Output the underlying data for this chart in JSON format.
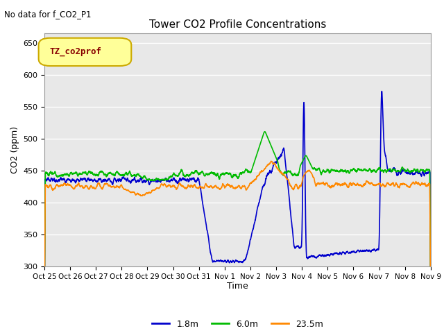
{
  "title": "Tower CO2 Profile Concentrations",
  "no_data_label": "No data for f_CO2_P1",
  "ylabel": "CO2 (ppm)",
  "xlabel": "Time",
  "ylim": [
    300,
    665
  ],
  "yticks": [
    300,
    350,
    400,
    450,
    500,
    550,
    600,
    650
  ],
  "background_color": "#e8e8e8",
  "plot_bg_color": "#e8e8e8",
  "fig_bg_color": "#ffffff",
  "grid_color": "#ffffff",
  "legend_label": "TZ_co2prof",
  "legend_bg": "#ffff99",
  "legend_border": "#ccaa00",
  "lines": {
    "1.8m": {
      "color": "#0000cc",
      "linewidth": 1.2
    },
    "6.0m": {
      "color": "#00bb00",
      "linewidth": 1.2
    },
    "23.5m": {
      "color": "#ff8800",
      "linewidth": 1.2
    }
  },
  "xtick_labels": [
    "Oct 25",
    "Oct 26",
    "Oct 27",
    "Oct 28",
    "Oct 29",
    "Oct 30",
    "Oct 31",
    "Nov 1",
    "Nov 2",
    "Nov 3",
    "Nov 4",
    "Nov 5",
    "Nov 6",
    "Nov 7",
    "Nov 8",
    "Nov 9"
  ],
  "num_days": 15
}
